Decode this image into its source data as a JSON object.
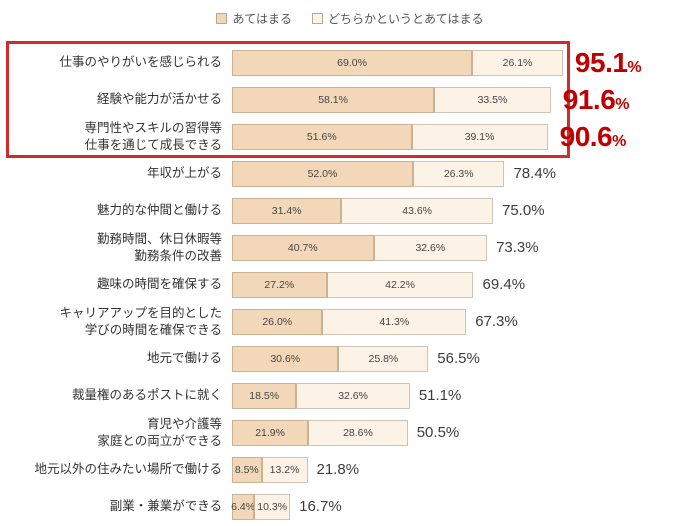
{
  "legend": [
    {
      "label": "あてはまる",
      "color": "#f2d8b9"
    },
    {
      "label": "どちらかというとあてはまる",
      "color": "#fcf3e6"
    }
  ],
  "colors": {
    "series_1": "#f2d8b9",
    "series_2": "#fcf3e6",
    "highlight_border": "#d22b2b",
    "highlight_text": "#c00000"
  },
  "chart_data": {
    "type": "bar",
    "orientation": "horizontal",
    "stacked": true,
    "xlim": [
      0,
      100
    ],
    "grid": false,
    "legend_position": "top-center",
    "series_names": [
      "あてはまる",
      "どちらかというとあてはまる"
    ],
    "rows": [
      {
        "label_lines": [
          "仕事のやりがいを感じられる"
        ],
        "values": [
          69.0,
          26.1
        ],
        "total": "95.1%",
        "highlight": true
      },
      {
        "label_lines": [
          "経験や能力が活かせる"
        ],
        "values": [
          58.1,
          33.5
        ],
        "total": "91.6%",
        "highlight": true
      },
      {
        "label_lines": [
          "専門性やスキルの習得等",
          "仕事を通じて成長できる"
        ],
        "values": [
          51.6,
          39.1
        ],
        "total": "90.6%",
        "highlight": true
      },
      {
        "label_lines": [
          "年収が上がる"
        ],
        "values": [
          52.0,
          26.3
        ],
        "total": "78.4%",
        "highlight": false
      },
      {
        "label_lines": [
          "魅力的な仲間と働ける"
        ],
        "values": [
          31.4,
          43.6
        ],
        "total": "75.0%",
        "highlight": false
      },
      {
        "label_lines": [
          "勤務時間、休日休暇等",
          "勤務条件の改善"
        ],
        "values": [
          40.7,
          32.6
        ],
        "total": "73.3%",
        "highlight": false
      },
      {
        "label_lines": [
          "趣味の時間を確保する"
        ],
        "values": [
          27.2,
          42.2
        ],
        "total": "69.4%",
        "highlight": false
      },
      {
        "label_lines": [
          "キャリアアップを目的とした",
          "学びの時間を確保できる"
        ],
        "values": [
          26.0,
          41.3
        ],
        "total": "67.3%",
        "highlight": false
      },
      {
        "label_lines": [
          "地元で働ける"
        ],
        "values": [
          30.6,
          25.8
        ],
        "total": "56.5%",
        "highlight": false
      },
      {
        "label_lines": [
          "裁量権のあるポストに就く"
        ],
        "values": [
          18.5,
          32.6
        ],
        "total": "51.1%",
        "highlight": false
      },
      {
        "label_lines": [
          "育児や介護等",
          "家庭との両立ができる"
        ],
        "values": [
          21.9,
          28.6
        ],
        "total": "50.5%",
        "highlight": false
      },
      {
        "label_lines": [
          "地元以外の住みたい場所で働ける"
        ],
        "values": [
          8.5,
          13.2
        ],
        "total": "21.8%",
        "highlight": false
      },
      {
        "label_lines": [
          "副業・兼業ができる"
        ],
        "values": [
          6.4,
          10.3
        ],
        "total": "16.7%",
        "highlight": false
      }
    ]
  }
}
